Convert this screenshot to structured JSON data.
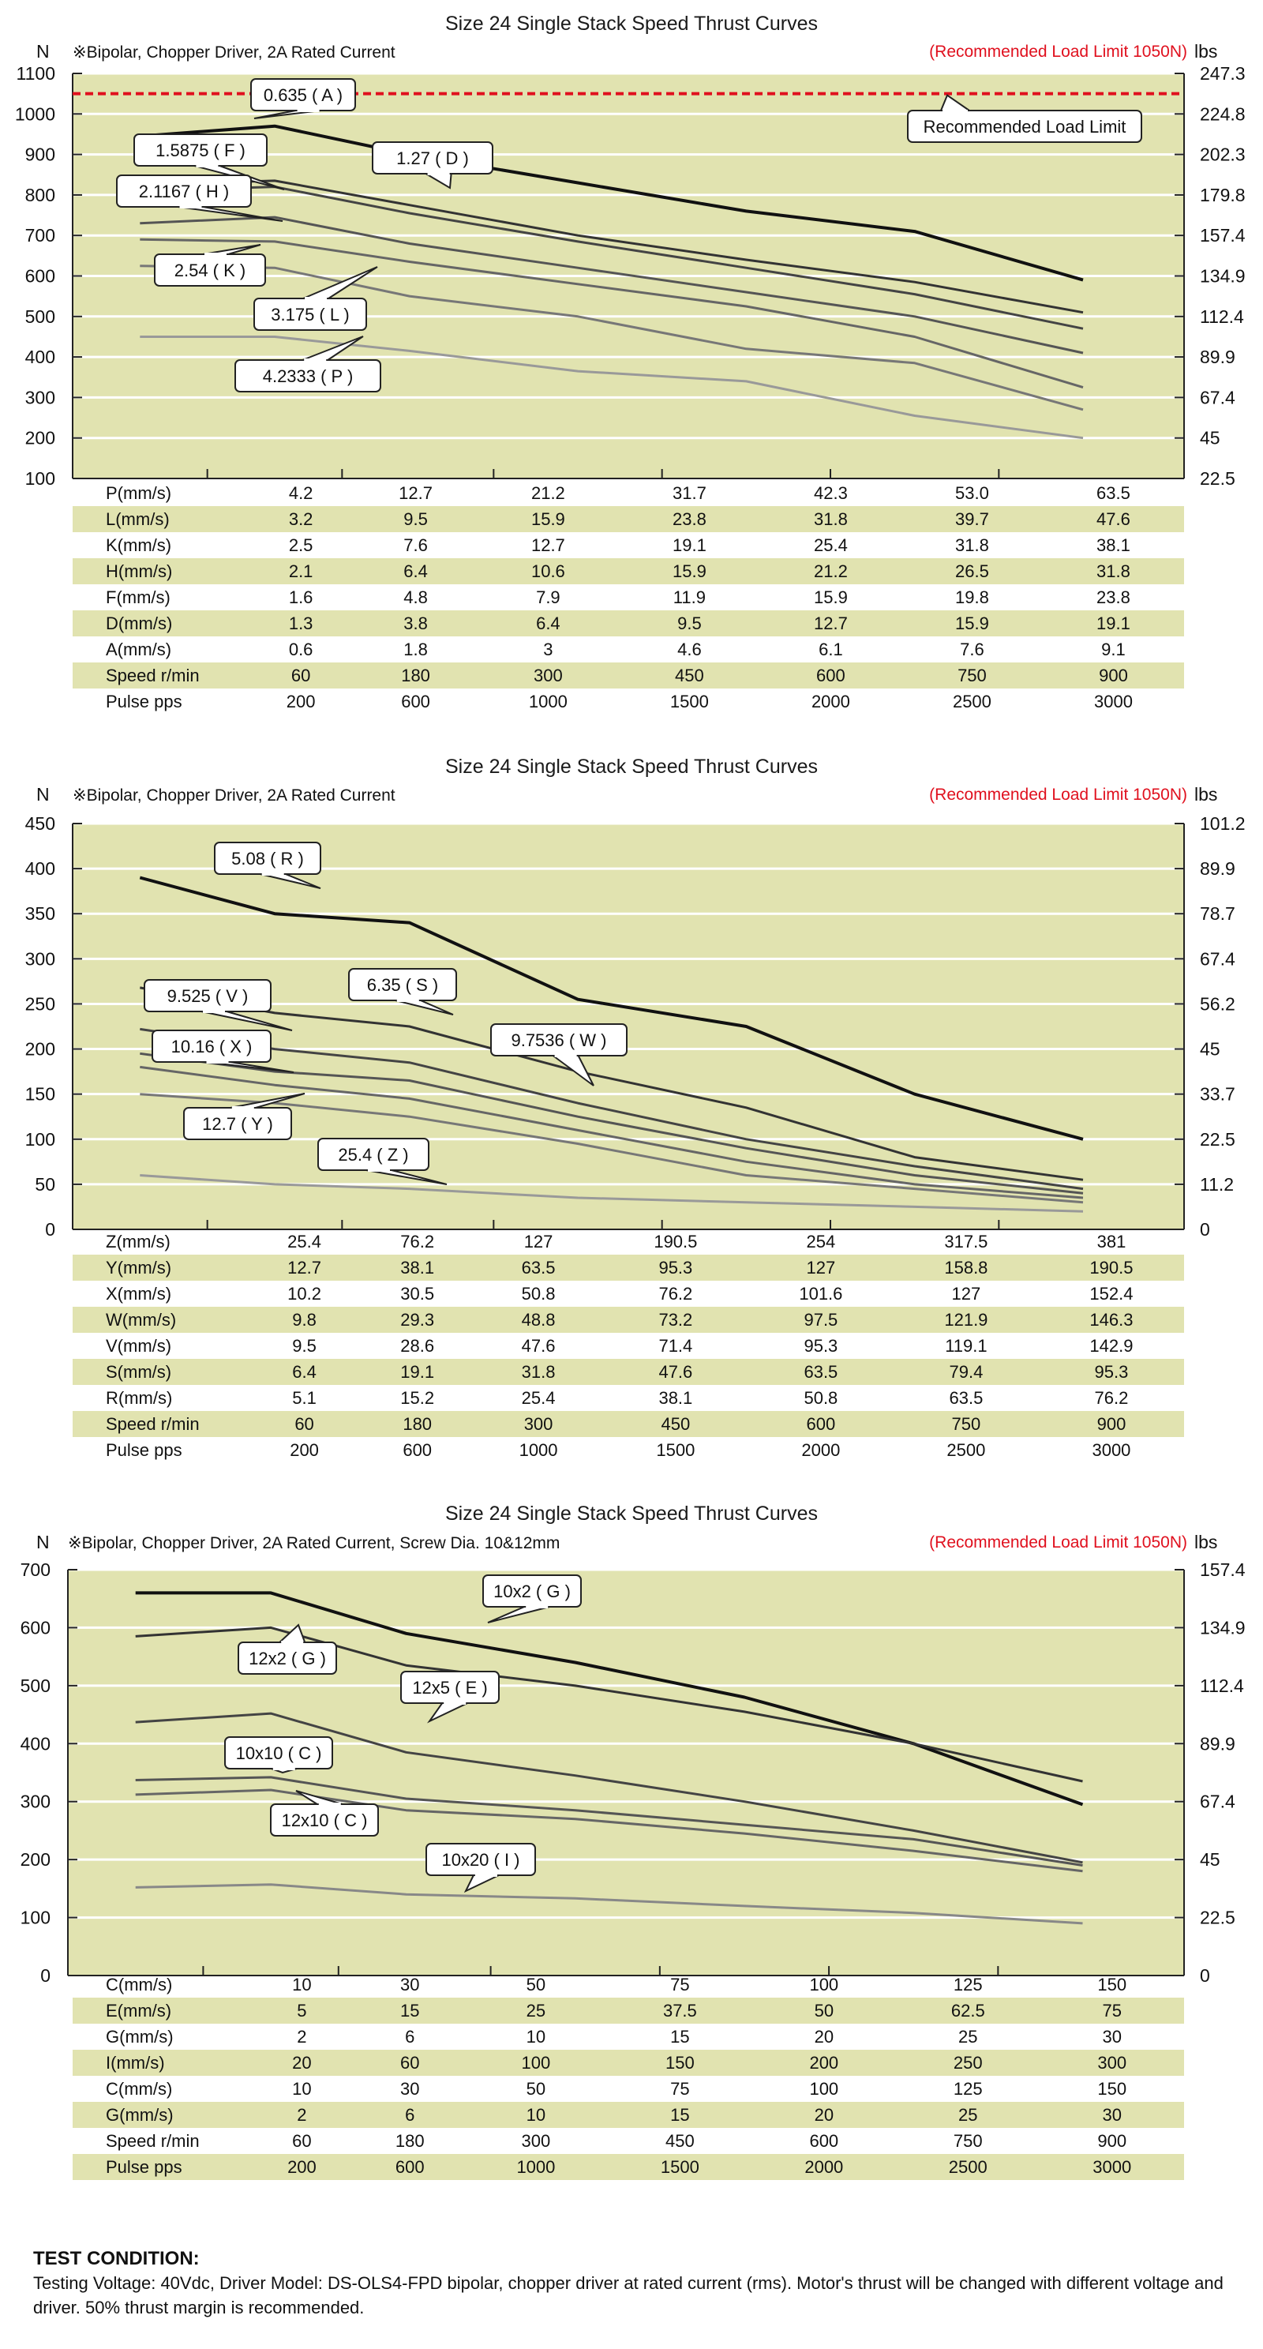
{
  "charts_common": {
    "left_unit": "N",
    "right_unit": "lbs",
    "limit_note": "(Recommended Load Limit 1050N)",
    "plot_bg": "#e1e3b0",
    "grid_color": "#ffffff",
    "limit_color": "#e0101e"
  },
  "chart_data": [
    {
      "type": "line",
      "title": "Size 24 Single Stack Speed Thrust Curves",
      "subtitle": "※Bipolar, Chopper Driver, 2A Rated Current",
      "ylabel": "N",
      "y2label": "lbs",
      "ylim": [
        100,
        1100
      ],
      "yticks": [
        100,
        200,
        300,
        400,
        500,
        600,
        700,
        800,
        900,
        1000,
        1100
      ],
      "y2ticks": [
        "22.5",
        "45",
        "67.4",
        "89.9",
        "112.4",
        "134.9",
        "157.4",
        "179.8",
        "202.3",
        "224.8",
        "247.3"
      ],
      "x_pulse": [
        200,
        600,
        1000,
        1500,
        2000,
        2500,
        3000
      ],
      "xlim": [
        0,
        3300
      ],
      "limit_line": {
        "value": 1050,
        "label": "Recommended Load Limit"
      },
      "series": [
        {
          "name": "0.635 ( A )",
          "x": [
            0,
            600,
            1000,
            1500,
            2000,
            2500,
            3000
          ],
          "y": [
            945,
            970,
            900,
            830,
            760,
            710,
            590
          ]
        },
        {
          "name": "1.27 ( D )",
          "x": [
            0,
            600,
            1000,
            1500,
            2000,
            2500,
            3000
          ],
          "y": [
            825,
            835,
            775,
            700,
            640,
            585,
            510
          ]
        },
        {
          "name": "1.5875 ( F )",
          "x": [
            0,
            600,
            1000,
            1500,
            2000,
            2500,
            3000
          ],
          "y": [
            810,
            820,
            755,
            685,
            620,
            555,
            470
          ]
        },
        {
          "name": "2.1167 ( H )",
          "x": [
            0,
            600,
            1000,
            1500,
            2000,
            2500,
            3000
          ],
          "y": [
            730,
            745,
            680,
            620,
            560,
            500,
            410
          ]
        },
        {
          "name": "2.54 ( K )",
          "x": [
            0,
            600,
            1000,
            1500,
            2000,
            2500,
            3000
          ],
          "y": [
            690,
            685,
            635,
            580,
            525,
            450,
            325
          ]
        },
        {
          "name": "3.175 ( L )",
          "x": [
            0,
            600,
            1000,
            1500,
            2000,
            2500,
            3000
          ],
          "y": [
            625,
            620,
            550,
            500,
            420,
            385,
            270
          ]
        },
        {
          "name": "4.2333 ( P )",
          "x": [
            0,
            600,
            1000,
            1500,
            2000,
            2500,
            3000
          ],
          "y": [
            450,
            450,
            415,
            365,
            340,
            255,
            200
          ]
        }
      ]
    },
    {
      "type": "line",
      "title": "Size 24 Single Stack Speed Thrust Curves",
      "subtitle": "※Bipolar, Chopper Driver, 2A Rated Current",
      "ylabel": "N",
      "y2label": "lbs",
      "ylim": [
        0,
        450
      ],
      "yticks": [
        0,
        50,
        100,
        150,
        200,
        250,
        300,
        350,
        400,
        450
      ],
      "y2ticks": [
        "0",
        "11.2",
        "22.5",
        "33.7",
        "45",
        "56.2",
        "67.4",
        "78.7",
        "89.9",
        "101.2"
      ],
      "x_pulse": [
        200,
        600,
        1000,
        1500,
        2000,
        2500,
        3000
      ],
      "xlim": [
        0,
        3300
      ],
      "series": [
        {
          "name": "5.08 ( R )",
          "x": [
            0,
            600,
            1000,
            1500,
            2000,
            2500,
            3000
          ],
          "y": [
            390,
            350,
            340,
            255,
            225,
            150,
            100
          ]
        },
        {
          "name": "6.35 ( S )",
          "x": [
            0,
            600,
            1000,
            1500,
            2000,
            2500,
            3000
          ],
          "y": [
            268,
            240,
            225,
            175,
            135,
            80,
            55
          ]
        },
        {
          "name": "9.525 ( V )",
          "x": [
            0,
            600,
            1000,
            1500,
            2000,
            2500,
            3000
          ],
          "y": [
            222,
            200,
            185,
            140,
            100,
            70,
            45
          ]
        },
        {
          "name": "9.7536 ( W )",
          "x": [
            0,
            600,
            1000,
            1500,
            2000,
            2500,
            3000
          ],
          "y": [
            195,
            175,
            165,
            125,
            90,
            60,
            40
          ]
        },
        {
          "name": "10.16 ( X )",
          "x": [
            0,
            600,
            1000,
            1500,
            2000,
            2500,
            3000
          ],
          "y": [
            180,
            160,
            145,
            110,
            75,
            50,
            35
          ]
        },
        {
          "name": "12.7 ( Y )",
          "x": [
            0,
            600,
            1000,
            1500,
            2000,
            2500,
            3000
          ],
          "y": [
            150,
            140,
            125,
            95,
            60,
            45,
            30
          ]
        },
        {
          "name": "25.4 ( Z )",
          "x": [
            0,
            600,
            1000,
            1500,
            2000,
            2500,
            3000
          ],
          "y": [
            60,
            50,
            45,
            35,
            30,
            25,
            20
          ]
        }
      ]
    },
    {
      "type": "line",
      "title": "Size 24 Single Stack Speed Thrust Curves",
      "subtitle": "※Bipolar, Chopper Driver, 2A Rated Current, Screw Dia. 10&12mm",
      "ylabel": "N",
      "y2label": "lbs",
      "ylim": [
        0,
        700
      ],
      "yticks": [
        0,
        100,
        200,
        300,
        400,
        500,
        600,
        700
      ],
      "y2ticks": [
        "0",
        "22.5",
        "45",
        "67.4",
        "89.9",
        "112.4",
        "134.9",
        "157.4"
      ],
      "x_pulse": [
        200,
        600,
        1000,
        1500,
        2000,
        2500,
        3000
      ],
      "xlim": [
        0,
        3300
      ],
      "series": [
        {
          "name": "10x2 ( G )",
          "x": [
            0,
            600,
            1000,
            1500,
            2000,
            2500,
            3000
          ],
          "y": [
            660,
            660,
            590,
            540,
            480,
            400,
            295
          ]
        },
        {
          "name": "12x2 ( G )",
          "x": [
            0,
            600,
            1000,
            1500,
            2000,
            2500,
            3000
          ],
          "y": [
            585,
            600,
            535,
            500,
            455,
            400,
            335
          ]
        },
        {
          "name": "12x5 ( E )",
          "x": [
            0,
            600,
            1000,
            1500,
            2000,
            2500,
            3000
          ],
          "y": [
            437,
            452,
            385,
            345,
            300,
            250,
            195
          ]
        },
        {
          "name": "10x10 ( C )",
          "x": [
            0,
            600,
            1000,
            1500,
            2000,
            2500,
            3000
          ],
          "y": [
            337,
            342,
            305,
            285,
            260,
            235,
            190
          ]
        },
        {
          "name": "12x10 ( C )",
          "x": [
            0,
            600,
            1000,
            1500,
            2000,
            2500,
            3000
          ],
          "y": [
            312,
            320,
            285,
            270,
            245,
            215,
            180
          ]
        },
        {
          "name": "10x20 ( I )",
          "x": [
            0,
            600,
            1000,
            1500,
            2000,
            2500,
            3000
          ],
          "y": [
            152,
            157,
            140,
            133,
            120,
            108,
            90
          ]
        }
      ]
    }
  ],
  "tables": [
    [
      {
        "label": "P(mm/s)",
        "values": [
          "4.2",
          "12.7",
          "21.2",
          "31.7",
          "42.3",
          "53.0",
          "63.5"
        ]
      },
      {
        "label": "L(mm/s)",
        "values": [
          "3.2",
          "9.5",
          "15.9",
          "23.8",
          "31.8",
          "39.7",
          "47.6"
        ]
      },
      {
        "label": "K(mm/s)",
        "values": [
          "2.5",
          "7.6",
          "12.7",
          "19.1",
          "25.4",
          "31.8",
          "38.1"
        ]
      },
      {
        "label": "H(mm/s)",
        "values": [
          "2.1",
          "6.4",
          "10.6",
          "15.9",
          "21.2",
          "26.5",
          "31.8"
        ]
      },
      {
        "label": "F(mm/s)",
        "values": [
          "1.6",
          "4.8",
          "7.9",
          "11.9",
          "15.9",
          "19.8",
          "23.8"
        ]
      },
      {
        "label": "D(mm/s)",
        "values": [
          "1.3",
          "3.8",
          "6.4",
          "9.5",
          "12.7",
          "15.9",
          "19.1"
        ]
      },
      {
        "label": "A(mm/s)",
        "values": [
          "0.6",
          "1.8",
          "3",
          "4.6",
          "6.1",
          "7.6",
          "9.1"
        ]
      },
      {
        "label": "Speed r/min",
        "values": [
          "60",
          "180",
          "300",
          "450",
          "600",
          "750",
          "900"
        ]
      },
      {
        "label": "Pulse  pps",
        "values": [
          "200",
          "600",
          "1000",
          "1500",
          "2000",
          "2500",
          "3000"
        ]
      }
    ],
    [
      {
        "label": "Z(mm/s)",
        "values": [
          "25.4",
          "76.2",
          "127",
          "190.5",
          "254",
          "317.5",
          "381"
        ]
      },
      {
        "label": "Y(mm/s)",
        "values": [
          "12.7",
          "38.1",
          "63.5",
          "95.3",
          "127",
          "158.8",
          "190.5"
        ]
      },
      {
        "label": "X(mm/s)",
        "values": [
          "10.2",
          "30.5",
          "50.8",
          "76.2",
          "101.6",
          "127",
          "152.4"
        ]
      },
      {
        "label": "W(mm/s)",
        "values": [
          "9.8",
          "29.3",
          "48.8",
          "73.2",
          "97.5",
          "121.9",
          "146.3"
        ]
      },
      {
        "label": "V(mm/s)",
        "values": [
          "9.5",
          "28.6",
          "47.6",
          "71.4",
          "95.3",
          "119.1",
          "142.9"
        ]
      },
      {
        "label": "S(mm/s)",
        "values": [
          "6.4",
          "19.1",
          "31.8",
          "47.6",
          "63.5",
          "79.4",
          "95.3"
        ]
      },
      {
        "label": "R(mm/s)",
        "values": [
          "5.1",
          "15.2",
          "25.4",
          "38.1",
          "50.8",
          "63.5",
          "76.2"
        ]
      },
      {
        "label": "Speed r/min",
        "values": [
          "60",
          "180",
          "300",
          "450",
          "600",
          "750",
          "900"
        ]
      },
      {
        "label": "Pulse  pps",
        "values": [
          "200",
          "600",
          "1000",
          "1500",
          "2000",
          "2500",
          "3000"
        ]
      }
    ],
    [
      {
        "label": "C(mm/s)",
        "values": [
          "10",
          "30",
          "50",
          "75",
          "100",
          "125",
          "150"
        ]
      },
      {
        "label": "E(mm/s)",
        "values": [
          "5",
          "15",
          "25",
          "37.5",
          "50",
          "62.5",
          "75"
        ]
      },
      {
        "label": "G(mm/s)",
        "values": [
          "2",
          "6",
          "10",
          "15",
          "20",
          "25",
          "30"
        ]
      },
      {
        "label": "I(mm/s)",
        "values": [
          "20",
          "60",
          "100",
          "150",
          "200",
          "250",
          "300"
        ]
      },
      {
        "label": "C(mm/s)",
        "values": [
          "10",
          "30",
          "50",
          "75",
          "100",
          "125",
          "150"
        ]
      },
      {
        "label": "G(mm/s)",
        "values": [
          "2",
          "6",
          "10",
          "15",
          "20",
          "25",
          "30"
        ]
      },
      {
        "label": "Speed r/min",
        "values": [
          "60",
          "180",
          "300",
          "450",
          "600",
          "750",
          "900"
        ]
      },
      {
        "label": "Pulse  pps",
        "values": [
          "200",
          "600",
          "1000",
          "1500",
          "2000",
          "2500",
          "3000"
        ]
      }
    ]
  ],
  "test_condition": {
    "heading": "TEST CONDITION:",
    "text": "Testing Voltage: 40Vdc, Driver Model: DS-OLS4-FPD bipolar, chopper driver at rated current (rms). Motor's thrust will be changed with different voltage and driver. 50% thrust margin is recommended."
  }
}
